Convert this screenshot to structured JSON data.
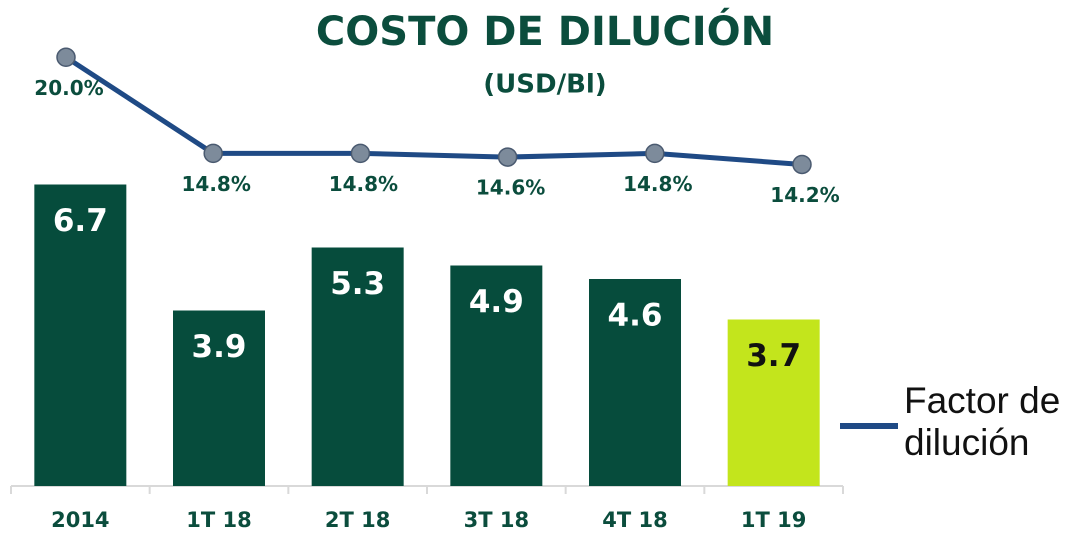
{
  "chart_data": {
    "type": "bar",
    "title": "COSTO DE DILUCIÓN",
    "subtitle": "(USD/Bl)",
    "categories": [
      "2014",
      "1T 18",
      "2T 18",
      "3T 18",
      "4T 18",
      "1T 19"
    ],
    "series": [
      {
        "name": null,
        "type": "bar",
        "colors": [
          "#064c3c",
          "#064c3c",
          "#064c3c",
          "#064c3c",
          "#064c3c",
          "#c3e51c"
        ],
        "values": [
          6.7,
          3.9,
          5.3,
          4.9,
          4.6,
          3.7
        ]
      },
      {
        "name": "Factor de dilución",
        "type": "line",
        "axis": "y2",
        "color": "#1f4a85",
        "values": [
          20.0,
          14.8,
          14.8,
          14.6,
          14.8,
          14.2
        ],
        "value_labels": [
          "20.0%",
          "14.8%",
          "14.8%",
          "14.6%",
          "14.8%",
          "14.2%"
        ]
      }
    ],
    "ylim": [
      0,
      10.8
    ],
    "y2lim": [
      -3.2,
      23.1
    ],
    "grid": false,
    "legend": "right"
  }
}
